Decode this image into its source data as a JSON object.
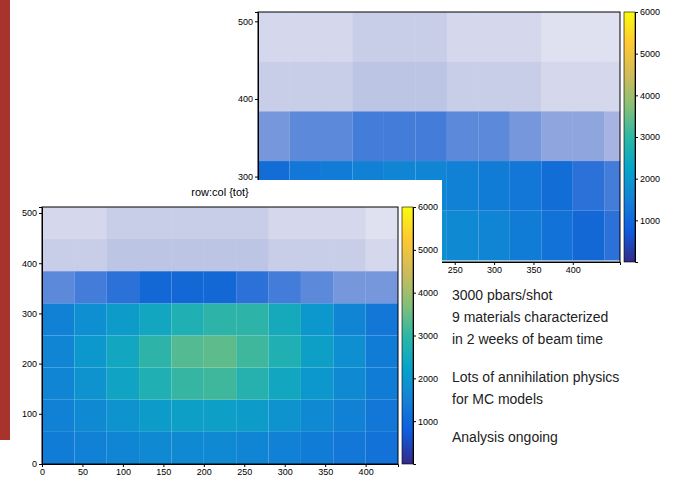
{
  "chart_data": [
    {
      "type": "heatmap",
      "xbins": [
        0,
        40,
        80,
        120,
        160,
        200,
        240,
        280,
        320,
        360,
        400,
        440,
        480
      ],
      "ybins": [
        192,
        256,
        320,
        384,
        448,
        512
      ],
      "cells": [
        [
          1200,
          1400,
          1600,
          1700,
          1800,
          1800,
          1700,
          1600,
          1400,
          1200,
          1000,
          900
        ],
        [
          1100,
          1300,
          1400,
          1500,
          1600,
          1600,
          1500,
          1400,
          1300,
          1100,
          900,
          800
        ],
        [
          600,
          700,
          700,
          800,
          800,
          800,
          700,
          700,
          600,
          500,
          500,
          400
        ],
        [
          250,
          250,
          250,
          300,
          300,
          300,
          250,
          250,
          250,
          200,
          200,
          200
        ],
        [
          200,
          200,
          200,
          250,
          250,
          250,
          200,
          200,
          200,
          150,
          150,
          150
        ]
      ],
      "xlim": [
        0,
        460
      ],
      "ylim": [
        190,
        512
      ],
      "xticks": [
        250,
        300,
        350,
        400
      ],
      "yticks": [
        300,
        400,
        500
      ],
      "colorbar": {
        "range": [
          0,
          6000
        ],
        "ticks": [
          1000,
          2000,
          3000,
          4000,
          5000,
          6000
        ]
      }
    },
    {
      "type": "heatmap",
      "title": "row:col {tot}",
      "xbins": [
        0,
        40,
        80,
        120,
        160,
        200,
        240,
        280,
        320,
        360,
        400,
        440
      ],
      "ybins": [
        0,
        64,
        128,
        192,
        256,
        320,
        384,
        448,
        512
      ],
      "cells": [
        [
          1400,
          1500,
          1600,
          1700,
          1700,
          1700,
          1600,
          1500,
          1400,
          1300,
          1200
        ],
        [
          1500,
          1700,
          1900,
          2100,
          2200,
          2200,
          2100,
          1900,
          1700,
          1500,
          1300
        ],
        [
          1600,
          1900,
          2300,
          2700,
          3000,
          3100,
          2800,
          2400,
          2000,
          1700,
          1400
        ],
        [
          1600,
          2000,
          2400,
          2900,
          3300,
          3400,
          3100,
          2700,
          2200,
          1800,
          1400
        ],
        [
          1500,
          1800,
          2100,
          2400,
          2700,
          2900,
          2900,
          2500,
          2000,
          1600,
          1300
        ],
        [
          700,
          800,
          900,
          1000,
          1000,
          1000,
          900,
          800,
          700,
          600,
          600
        ],
        [
          250,
          250,
          300,
          300,
          300,
          300,
          300,
          250,
          250,
          250,
          200
        ],
        [
          200,
          200,
          250,
          250,
          250,
          250,
          250,
          200,
          200,
          200,
          150
        ]
      ],
      "xlim": [
        0,
        440
      ],
      "ylim": [
        0,
        512
      ],
      "xticks": [
        0,
        50,
        100,
        150,
        200,
        250,
        300,
        350,
        400
      ],
      "yticks": [
        0,
        100,
        200,
        300,
        400,
        500
      ],
      "colorbar": {
        "range": [
          0,
          6000
        ],
        "ticks": [
          1000,
          2000,
          3000,
          4000,
          5000,
          6000
        ]
      }
    }
  ],
  "slide_text": [
    [
      "3000 pbars/shot",
      "9 materials characterized",
      "in 2 weeks of beam time"
    ],
    [
      "Lots of annihilation physics",
      "for MC models"
    ],
    [
      "Analysis ongoing"
    ]
  ]
}
